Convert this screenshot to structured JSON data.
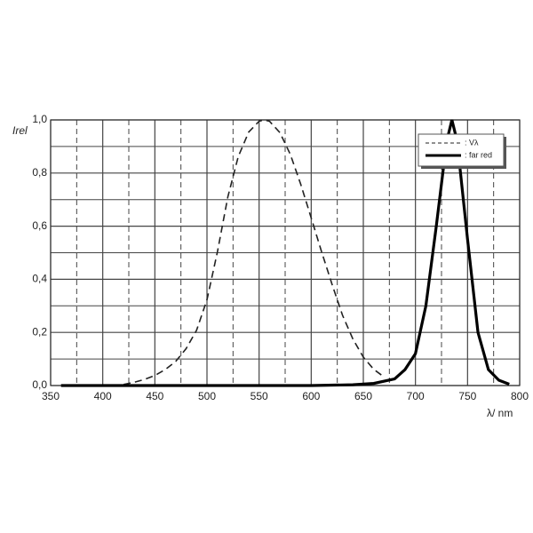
{
  "chart_data": {
    "type": "line",
    "xlabel": "λ/ nm",
    "ylabel": "Irel",
    "xlim": [
      350,
      800
    ],
    "ylim": [
      0,
      1
    ],
    "xticks": [
      350,
      400,
      450,
      500,
      550,
      600,
      650,
      700,
      750,
      800
    ],
    "minor_xticks": [
      375,
      425,
      475,
      525,
      575,
      625,
      675,
      725,
      775
    ],
    "yticks": [
      {
        "value": 0,
        "label": "0,0"
      },
      {
        "value": 0.2,
        "label": "0,2"
      },
      {
        "value": 0.4,
        "label": "0,4"
      },
      {
        "value": 0.6,
        "label": "0,6"
      },
      {
        "value": 0.8,
        "label": "0,8"
      },
      {
        "value": 1,
        "label": "1,0"
      }
    ],
    "minor_yticks": [
      0.1,
      0.3,
      0.5,
      0.7,
      0.9
    ],
    "grid": true,
    "legend": "upper right",
    "series": [
      {
        "name": ": Vλ",
        "color": "#222222",
        "style": "dashed",
        "x": [
          420,
          430,
          440,
          450,
          460,
          470,
          480,
          490,
          500,
          510,
          520,
          530,
          540,
          550,
          555,
          560,
          570,
          580,
          590,
          600,
          610,
          620,
          630,
          640,
          650,
          660,
          670
        ],
        "values": [
          0.004,
          0.012,
          0.023,
          0.038,
          0.06,
          0.091,
          0.139,
          0.208,
          0.323,
          0.503,
          0.71,
          0.862,
          0.954,
          0.995,
          1.0,
          0.995,
          0.952,
          0.87,
          0.757,
          0.631,
          0.503,
          0.381,
          0.265,
          0.175,
          0.107,
          0.061,
          0.032
        ]
      },
      {
        "name": ": far red",
        "color": "#000000",
        "style": "solid",
        "x": [
          360,
          600,
          640,
          660,
          680,
          690,
          700,
          710,
          720,
          730,
          735,
          740,
          750,
          760,
          770,
          780,
          790
        ],
        "values": [
          0,
          0,
          0.003,
          0.008,
          0.025,
          0.06,
          0.12,
          0.3,
          0.6,
          0.92,
          1.0,
          0.92,
          0.55,
          0.2,
          0.06,
          0.02,
          0.005
        ]
      }
    ]
  }
}
